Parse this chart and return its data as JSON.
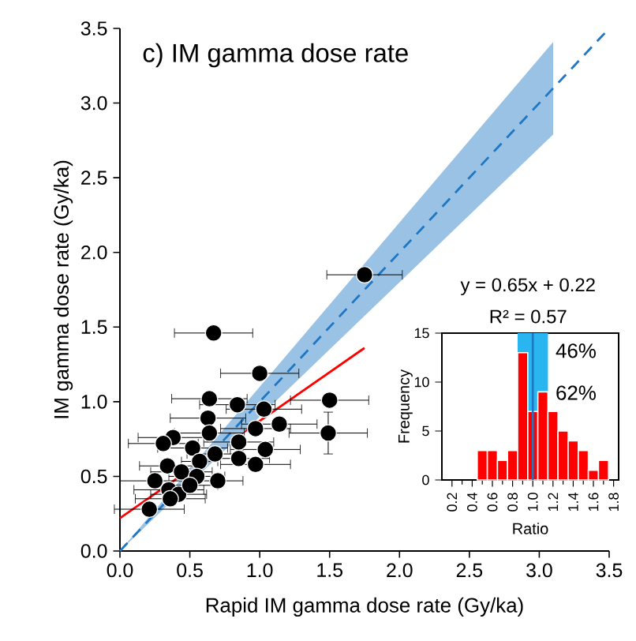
{
  "chart_data": [
    {
      "type": "scatter",
      "title": "c) IM gamma dose rate",
      "xlabel": "Rapid IM gamma dose rate (Gy/ka)",
      "ylabel": "IM gamma dose rate (Gy/ka)",
      "xlim": [
        0,
        3.5
      ],
      "ylim": [
        0,
        3.5
      ],
      "xticks": [
        {
          "value": 0,
          "label": "0.0"
        },
        0.5,
        {
          "value": 1,
          "label": "1.0"
        },
        1.5,
        {
          "value": 2,
          "label": "2.0"
        },
        2.5,
        {
          "value": 3,
          "label": "3.0"
        },
        3.5
      ],
      "yticks": [
        {
          "value": 0,
          "label": "0.0"
        },
        0.5,
        {
          "value": 1,
          "label": "1.0"
        },
        1.5,
        {
          "value": 2,
          "label": "2.0"
        },
        2.5,
        {
          "value": 3,
          "label": "3.0"
        },
        3.5
      ],
      "grid": false,
      "annotations": [
        "y = 0.65x + 0.22",
        "R² = 0.57"
      ],
      "series": [
        {
          "type": "scatter",
          "color": "#000000",
          "marker": "circle",
          "x": [
            1.75,
            0.67,
            1.0,
            0.64,
            0.84,
            1.5,
            1.49,
            1.03,
            1.14,
            0.63,
            0.97,
            0.38,
            0.31,
            0.64,
            0.85,
            1.04,
            0.97,
            0.85,
            0.52,
            0.57,
            0.68,
            0.34,
            0.44,
            0.55,
            0.7,
            0.25,
            0.35,
            0.42,
            0.5,
            0.36,
            0.21
          ],
          "values": [
            1.85,
            1.46,
            1.19,
            1.02,
            0.98,
            1.01,
            0.79,
            0.95,
            0.85,
            0.89,
            0.82,
            0.76,
            0.72,
            0.79,
            0.73,
            0.68,
            0.58,
            0.62,
            0.69,
            0.6,
            0.65,
            0.57,
            0.53,
            0.5,
            0.47,
            0.47,
            0.41,
            0.38,
            0.44,
            0.35,
            0.28
          ],
          "xerrors": [
            0.27,
            0.28,
            0.28,
            0.27,
            0.27,
            0.28,
            0.28,
            0.27,
            0.27,
            0.27,
            0.25,
            0.25,
            0.25,
            0.25,
            0.25,
            0.25,
            0.25,
            0.22,
            0.25,
            0.13,
            0.2,
            0.2,
            0.22,
            0.2,
            0.18,
            0.25,
            0.25,
            0.2,
            0.2,
            0.25,
            0.25
          ],
          "errors": [
            null,
            null,
            null,
            null,
            null,
            null,
            0.14,
            null,
            null,
            null,
            null,
            null,
            null,
            null,
            null,
            null,
            null,
            null,
            null,
            null,
            null,
            null,
            null,
            null,
            null,
            null,
            null,
            null,
            null,
            null,
            null
          ]
        },
        {
          "type": "line",
          "color": "#ff0000",
          "line_style": "solid",
          "marker": "none",
          "x": [
            0,
            1.75
          ],
          "values": [
            0.22,
            1.36
          ]
        },
        {
          "type": "line",
          "color": "#1f77c4",
          "line_style": "dashed",
          "marker": "none",
          "x": [
            0,
            3.1,
            3.5
          ],
          "values": [
            0,
            3.1,
            3.5
          ],
          "lower": [
            0,
            2.79,
            null
          ],
          "upper": [
            0,
            3.41,
            null
          ]
        }
      ]
    },
    {
      "type": "histogram",
      "xlabel": "Ratio",
      "ylabel": "Frequency",
      "color": "#ff0000",
      "bins": [
        0.45,
        0.55,
        0.65,
        0.75,
        0.85,
        0.95,
        1.05,
        1.15,
        1.25,
        1.35,
        1.45,
        1.55,
        1.65,
        1.75
      ],
      "values": [
        3,
        3,
        2,
        3,
        13,
        7,
        9,
        7,
        5,
        4,
        3,
        1,
        2
      ],
      "xlim": [
        0.1,
        1.85
      ],
      "ylim": [
        0,
        15
      ],
      "xticks": [
        0.2,
        0.4,
        0.6,
        0.8,
        {
          "value": 1,
          "label": "1.0"
        },
        1.2,
        1.4,
        1.6,
        1.8
      ],
      "yticks": [
        0,
        5,
        10,
        15
      ],
      "bands": [
        {
          "axis": "x",
          "from": 0.85,
          "to": 1.15,
          "color": "#29b6f0"
        }
      ],
      "ref_lines": [
        {
          "axis": "x",
          "value": 1.0,
          "color": "#1f77c4"
        }
      ],
      "annotations": [
        "46%",
        "62%"
      ]
    }
  ]
}
